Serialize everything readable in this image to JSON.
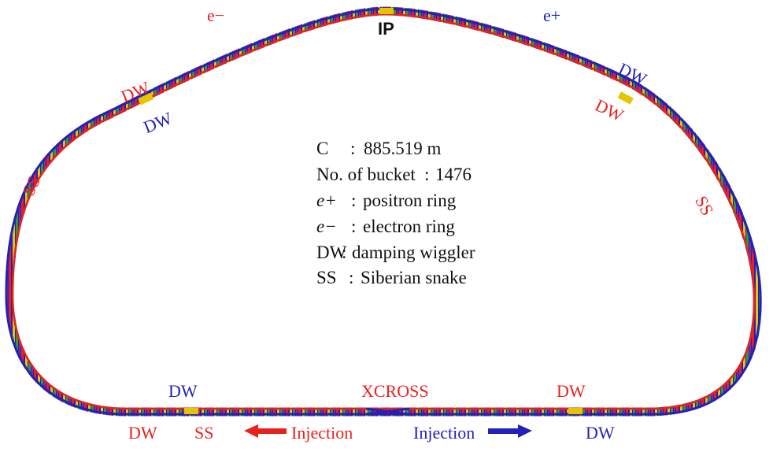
{
  "beams": {
    "electron": "e−",
    "positron": "e+"
  },
  "ip_label": "IP",
  "xcross_label": "XCROSS",
  "damping_wiggler": "DW",
  "siberian_snake": "SS",
  "injection": "Injection",
  "legend": [
    {
      "key": "C",
      "sep": ":",
      "text": "885.519 m"
    },
    {
      "key": "No. of bucket",
      "sep": ":",
      "text": "1476"
    },
    {
      "key": "e+",
      "sep": ":",
      "text": "positron ring"
    },
    {
      "key": "e−",
      "sep": ":",
      "text": "electron ring"
    },
    {
      "key": "DW",
      "sep": ":",
      "text": "damping wiggler"
    },
    {
      "key": "SS",
      "sep": ":",
      "text": "Siberian snake"
    }
  ],
  "colors": {
    "electron_red": "#e8211f",
    "positron_blue": "#2222bb",
    "magnet_yellow": "#e8c400",
    "magnet_green": "#2f9a3a",
    "magnet_purple": "#8a2b8f"
  }
}
